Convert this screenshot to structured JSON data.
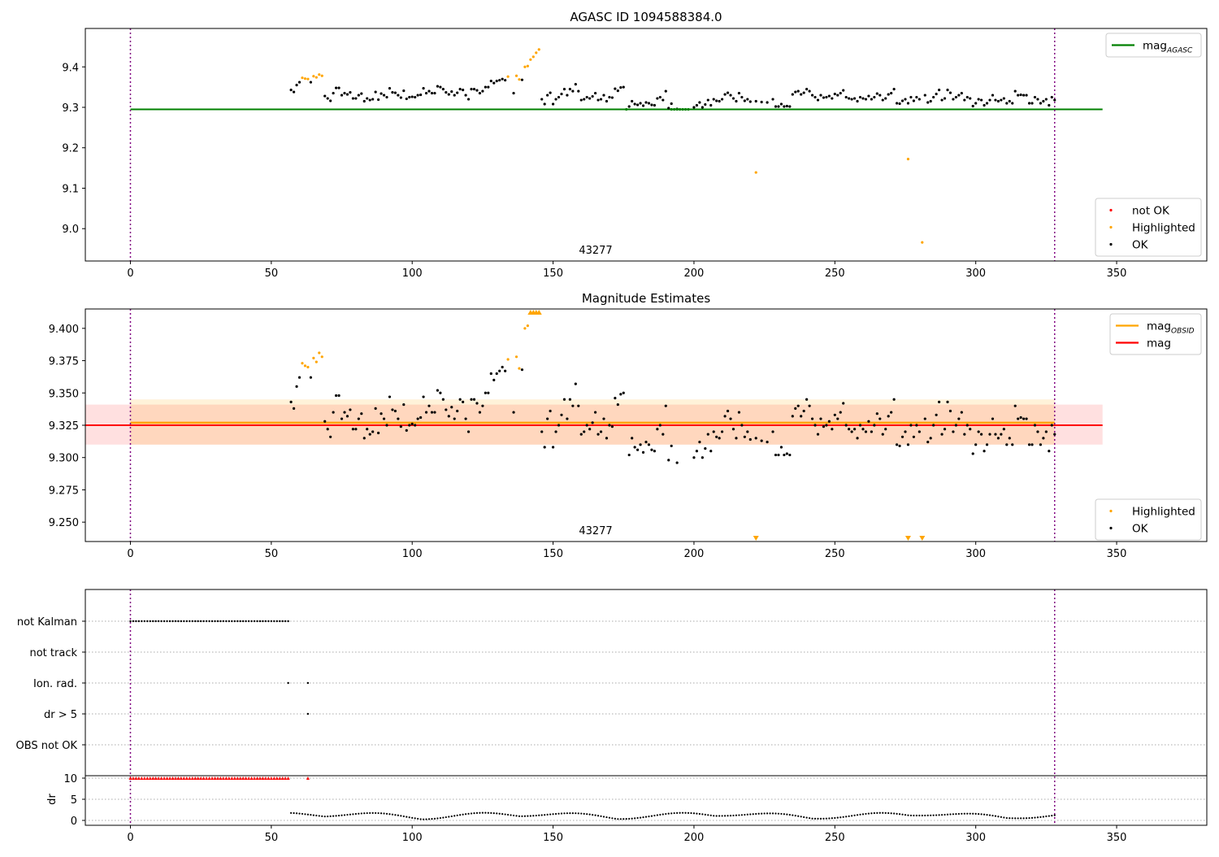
{
  "chart_data": [
    {
      "type": "scatter",
      "title": "AGASC ID 1094588384.0",
      "annotation": "43277",
      "xlim": [
        -16,
        382
      ],
      "ylim": [
        8.92,
        9.495
      ],
      "xticks": [
        0,
        50,
        100,
        150,
        200,
        250,
        300,
        350
      ],
      "yticks": [
        9.0,
        9.1,
        9.2,
        9.3,
        9.4
      ],
      "ytick_labels": [
        "9.0",
        "9.1",
        "9.2",
        "9.3",
        "9.4"
      ],
      "grid": false,
      "vlines": [
        0,
        328
      ],
      "colors": {
        "ok": "#000000",
        "highlighted": "#ffa500",
        "not_ok": "#ff0000",
        "mag_agasc": "#008000",
        "vline": "#800080"
      },
      "mag_agasc": {
        "value": 9.295,
        "x": [
          0,
          345
        ]
      },
      "legend_top": {
        "position": "upper right",
        "entries": [
          {
            "text": "mag",
            "sub": "AGASC",
            "kind": "line",
            "color": "#008000"
          }
        ]
      },
      "legend_bottom": {
        "position": "lower right",
        "entries": [
          {
            "text": "not OK",
            "kind": "dot",
            "color": "#ff0000"
          },
          {
            "text": "Highlighted",
            "kind": "dot",
            "color": "#ffa500"
          },
          {
            "text": "OK",
            "kind": "dot",
            "color": "#000000"
          }
        ]
      },
      "series": [
        {
          "name": "OK",
          "color": "#000000",
          "x": [
            57,
            58,
            59,
            60,
            64,
            69,
            70,
            71,
            72,
            73,
            74,
            75,
            76,
            77,
            78,
            79,
            80,
            81,
            82,
            83,
            84,
            85,
            86,
            87,
            88,
            89,
            90,
            91,
            92,
            93,
            94,
            95,
            96,
            97,
            98,
            99,
            100,
            101,
            102,
            103,
            104,
            105,
            106,
            107,
            108,
            109,
            110,
            111,
            112,
            113,
            114,
            115,
            116,
            117,
            118,
            119,
            120,
            121,
            122,
            123,
            124,
            125,
            126,
            127,
            128,
            129,
            130,
            131,
            132,
            133,
            136,
            139,
            146,
            147,
            148,
            149,
            150,
            151,
            152,
            153,
            154,
            155,
            156,
            157,
            158,
            159,
            160,
            161,
            162,
            163,
            164,
            165,
            166,
            167,
            168,
            169,
            170,
            171,
            172,
            173,
            174,
            175,
            177,
            178,
            179,
            180,
            181,
            182,
            183,
            184,
            185,
            186,
            187,
            188,
            189,
            190,
            191,
            192,
            194,
            200,
            201,
            202,
            203,
            204,
            205,
            206,
            207,
            208,
            209,
            210,
            211,
            212,
            213,
            214,
            215,
            216,
            217,
            218,
            219,
            220,
            222,
            224,
            226,
            228,
            229,
            230,
            231,
            232,
            233,
            234,
            235,
            236,
            237,
            238,
            239,
            240,
            241,
            242,
            243,
            244,
            245,
            246,
            247,
            248,
            249,
            250,
            251,
            252,
            253,
            254,
            255,
            256,
            257,
            258,
            259,
            260,
            261,
            262,
            263,
            264,
            265,
            266,
            267,
            268,
            269,
            270,
            271,
            272,
            273,
            274,
            275,
            276,
            277,
            278,
            279,
            280,
            282,
            283,
            284,
            285,
            286,
            287,
            288,
            289,
            290,
            291,
            292,
            293,
            294,
            295,
            296,
            297,
            298,
            299,
            300,
            301,
            302,
            303,
            304,
            305,
            306,
            307,
            308,
            309,
            310,
            311,
            312,
            313,
            314,
            315,
            316,
            317,
            318,
            319,
            320,
            321,
            322,
            323,
            324,
            325,
            326,
            327,
            328
          ],
          "y": [
            9.343,
            9.338,
            9.355,
            9.362,
            9.362,
            9.328,
            9.322,
            9.316,
            9.335,
            9.348,
            9.348,
            9.33,
            9.335,
            9.332,
            9.337,
            9.322,
            9.322,
            9.33,
            9.334,
            9.315,
            9.322,
            9.318,
            9.32,
            9.338,
            9.319,
            9.334,
            9.33,
            9.325,
            9.347,
            9.337,
            9.336,
            9.33,
            9.324,
            9.341,
            9.321,
            9.325,
            9.326,
            9.325,
            9.33,
            9.331,
            9.347,
            9.335,
            9.34,
            9.335,
            9.335,
            9.352,
            9.35,
            9.345,
            9.337,
            9.332,
            9.339,
            9.33,
            9.336,
            9.345,
            9.343,
            9.33,
            9.32,
            9.345,
            9.345,
            9.342,
            9.335,
            9.34,
            9.35,
            9.35,
            9.365,
            9.36,
            9.365,
            9.367,
            9.37,
            9.367,
            9.335,
            9.368,
            9.32,
            9.308,
            9.33,
            9.336,
            9.308,
            9.32,
            9.325,
            9.333,
            9.345,
            9.33,
            9.345,
            9.34,
            9.357,
            9.34,
            9.318,
            9.32,
            9.325,
            9.322,
            9.327,
            9.335,
            9.318,
            9.32,
            9.33,
            9.315,
            9.325,
            9.324,
            9.346,
            9.341,
            9.349,
            9.35,
            9.302,
            9.315,
            9.308,
            9.306,
            9.31,
            9.304,
            9.312,
            9.31,
            9.306,
            9.305,
            9.322,
            9.325,
            9.318,
            9.34,
            9.298,
            9.309,
            9.296,
            9.3,
            9.305,
            9.312,
            9.3,
            9.307,
            9.318,
            9.305,
            9.32,
            9.316,
            9.315,
            9.32,
            9.332,
            9.336,
            9.33,
            9.322,
            9.315,
            9.335,
            9.325,
            9.316,
            9.32,
            9.314,
            9.315,
            9.313,
            9.312,
            9.32,
            9.302,
            9.302,
            9.308,
            9.302,
            9.303,
            9.302,
            9.332,
            9.338,
            9.34,
            9.332,
            9.336,
            9.345,
            9.34,
            9.33,
            9.325,
            9.318,
            9.33,
            9.324,
            9.325,
            9.328,
            9.322,
            9.333,
            9.33,
            9.335,
            9.342,
            9.325,
            9.322,
            9.32,
            9.322,
            9.315,
            9.325,
            9.322,
            9.32,
            9.328,
            9.32,
            9.325,
            9.334,
            9.33,
            9.318,
            9.322,
            9.332,
            9.335,
            9.345,
            9.31,
            9.309,
            9.316,
            9.32,
            9.31,
            9.325,
            9.316,
            9.325,
            9.32,
            9.33,
            9.312,
            9.315,
            9.325,
            9.333,
            9.343,
            9.318,
            9.322,
            9.343,
            9.336,
            9.32,
            9.325,
            9.33,
            9.335,
            9.318,
            9.325,
            9.322,
            9.303,
            9.31,
            9.32,
            9.318,
            9.305,
            9.31,
            9.318,
            9.33,
            9.318,
            9.315,
            9.318,
            9.322,
            9.31,
            9.315,
            9.31,
            9.34,
            9.33,
            9.331,
            9.33,
            9.33,
            9.31,
            9.31,
            9.325,
            9.32,
            9.31,
            9.315,
            9.32,
            9.305,
            9.325,
            9.318
          ]
        },
        {
          "name": "Highlighted",
          "color": "#ffa500",
          "x": [
            61,
            62,
            63,
            65,
            66,
            67,
            68,
            134,
            137,
            138,
            140,
            141,
            142,
            143,
            144,
            145,
            222,
            276,
            281
          ],
          "y": [
            9.373,
            9.371,
            9.37,
            9.377,
            9.374,
            9.381,
            9.378,
            9.376,
            9.378,
            9.369,
            9.4,
            9.402,
            9.418,
            9.425,
            9.435,
            9.443,
            9.139,
            9.172,
            8.966
          ]
        },
        {
          "name": "mag_agasc_markers",
          "color": "#008000",
          "x": [
            176,
            192,
            193,
            194,
            195,
            196,
            197,
            198
          ],
          "y": [
            9.295,
            9.295,
            9.295,
            9.295,
            9.295,
            9.295,
            9.295,
            9.295
          ]
        }
      ]
    },
    {
      "type": "scatter",
      "title": "Magnitude Estimates",
      "annotation": "43277",
      "xlim": [
        -16,
        382
      ],
      "ylim": [
        9.235,
        9.415
      ],
      "xticks": [
        0,
        50,
        100,
        150,
        200,
        250,
        300,
        350
      ],
      "yticks": [
        9.25,
        9.275,
        9.3,
        9.325,
        9.35,
        9.375,
        9.4
      ],
      "ytick_labels": [
        "9.250",
        "9.275",
        "9.300",
        "9.325",
        "9.350",
        "9.375",
        "9.400"
      ],
      "grid": false,
      "vlines": [
        0,
        328
      ],
      "mag": {
        "value": 9.325,
        "band": [
          9.31,
          9.341
        ],
        "x": [
          -16,
          345
        ],
        "color": "#ff0000"
      },
      "mag_obsid": {
        "value": 9.327,
        "band": [
          9.31,
          9.345
        ],
        "x": [
          0,
          328
        ],
        "color": "#ffa500"
      },
      "legend_top": {
        "position": "upper right",
        "entries": [
          {
            "text": "mag",
            "sub": "OBSID",
            "kind": "line",
            "color": "#ffa500"
          },
          {
            "text": "mag",
            "kind": "line",
            "color": "#ff0000"
          }
        ]
      },
      "legend_bottom": {
        "position": "lower right",
        "entries": [
          {
            "text": "Highlighted",
            "kind": "dot",
            "color": "#ffa500"
          },
          {
            "text": "OK",
            "kind": "dot",
            "color": "#000000"
          }
        ]
      },
      "clipped_markers": {
        "top_x": [
          142,
          143,
          144,
          145
        ],
        "bottom_x": [
          222,
          276,
          281
        ],
        "color": "#ffa500"
      }
    },
    {
      "type": "scatter",
      "title": "",
      "xlim": [
        -16,
        382
      ],
      "xticks": [
        0,
        50,
        100,
        150,
        200,
        250,
        300,
        350
      ],
      "vlines": [
        0,
        328
      ],
      "flags": {
        "categories": [
          "not Kalman",
          "not track",
          "Ion. rad.",
          "dr > 5",
          "OBS not OK"
        ],
        "not_kalman_x_range": [
          0,
          56
        ],
        "ion_rad_x": [
          56,
          63
        ],
        "dr_gt5_x": [
          63
        ]
      },
      "dr": {
        "ylabel": "dr",
        "yticks": [
          0,
          5,
          10
        ],
        "ylim": [
          -0.5,
          10.5
        ],
        "cap_value": 10,
        "cap_x_range": [
          0,
          56
        ],
        "cap_extra_x": [
          63
        ],
        "x_start": 57,
        "x_end": 328
      }
    }
  ]
}
